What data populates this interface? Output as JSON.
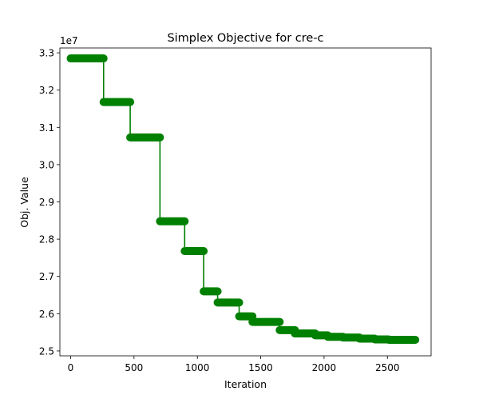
{
  "chart_data": {
    "type": "line",
    "title": "Simplex Objective for cre-c",
    "xlabel": "Iteration",
    "ylabel": "Obj. Value",
    "y_offset_label": "1e7",
    "xlim": [
      -85,
      2845
    ],
    "ylim": [
      2.487,
      3.313
    ],
    "xticks": [
      0,
      500,
      1000,
      1500,
      2000,
      2500
    ],
    "xtick_labels": [
      "0",
      "500",
      "1000",
      "1500",
      "2000",
      "2500"
    ],
    "yticks": [
      2.5,
      2.6,
      2.7,
      2.8,
      2.9,
      3.0,
      3.1,
      3.2,
      3.3
    ],
    "ytick_labels": [
      "2.5",
      "2.6",
      "2.7",
      "2.8",
      "2.9",
      "3.0",
      "3.1",
      "3.2",
      "3.3"
    ],
    "grid": false,
    "legend": "none",
    "series": [
      {
        "color": "#008000",
        "marker": "o",
        "steps": [
          {
            "x_start": 0,
            "x_end": 260,
            "y": 3.285
          },
          {
            "x_start": 260,
            "x_end": 470,
            "y": 3.168
          },
          {
            "x_start": 470,
            "x_end": 705,
            "y": 3.073
          },
          {
            "x_start": 705,
            "x_end": 900,
            "y": 2.848
          },
          {
            "x_start": 900,
            "x_end": 1050,
            "y": 2.768
          },
          {
            "x_start": 1050,
            "x_end": 1160,
            "y": 2.66
          },
          {
            "x_start": 1160,
            "x_end": 1330,
            "y": 2.63
          },
          {
            "x_start": 1330,
            "x_end": 1435,
            "y": 2.593
          },
          {
            "x_start": 1435,
            "x_end": 1650,
            "y": 2.578
          },
          {
            "x_start": 1650,
            "x_end": 1770,
            "y": 2.556
          },
          {
            "x_start": 1770,
            "x_end": 1930,
            "y": 2.547
          },
          {
            "x_start": 1930,
            "x_end": 2030,
            "y": 2.542
          },
          {
            "x_start": 2030,
            "x_end": 2150,
            "y": 2.538
          },
          {
            "x_start": 2150,
            "x_end": 2280,
            "y": 2.536
          },
          {
            "x_start": 2280,
            "x_end": 2400,
            "y": 2.533
          },
          {
            "x_start": 2400,
            "x_end": 2510,
            "y": 2.531
          },
          {
            "x_start": 2510,
            "x_end": 2720,
            "y": 2.53
          }
        ]
      }
    ]
  }
}
